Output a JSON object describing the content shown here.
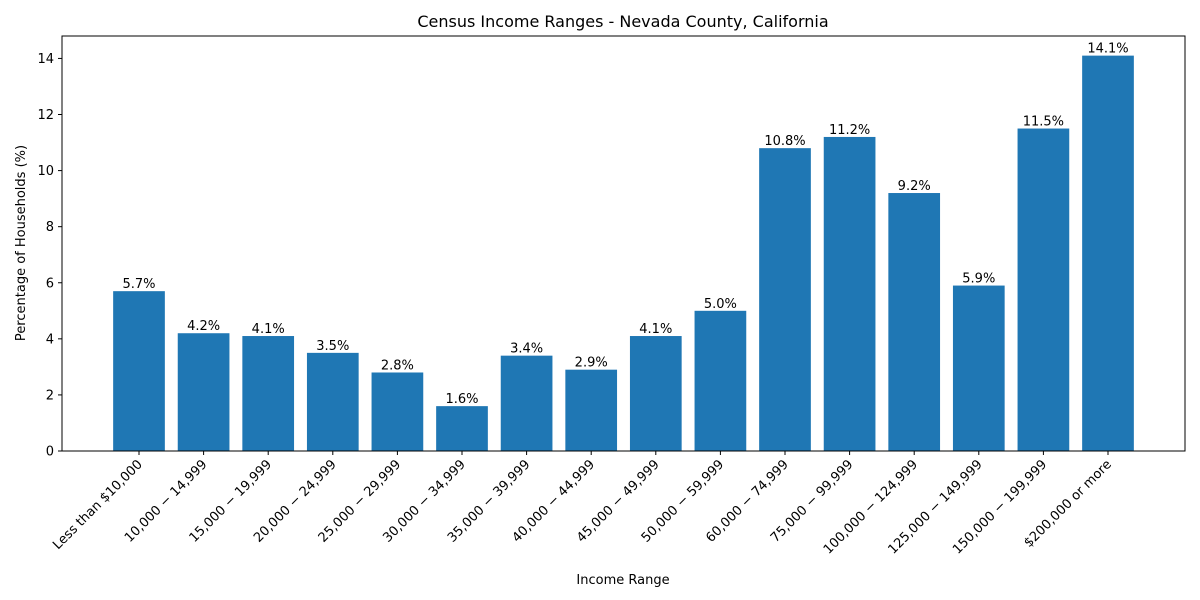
{
  "chart_data": {
    "type": "bar",
    "title": "Census Income Ranges - Nevada County, California",
    "xlabel": "Income Range",
    "ylabel": "Percentage of Households (%)",
    "categories": [
      "Less than $10,000",
      "10,000 − 14,999",
      "15,000 − 19,999",
      "20,000 − 24,999",
      "25,000 − 29,999",
      "30,000 − 34,999",
      "35,000 − 39,999",
      "40,000 − 44,999",
      "45,000 − 49,999",
      "50,000 − 59,999",
      "60,000 − 74,999",
      "75,000 − 99,999",
      "100,000 − 124,999",
      "125,000 − 149,999",
      "150,000 − 199,999",
      "$200,000 or more"
    ],
    "values": [
      5.7,
      4.2,
      4.1,
      3.5,
      2.8,
      1.6,
      3.4,
      2.9,
      4.1,
      5.0,
      10.8,
      11.2,
      9.2,
      5.9,
      11.5,
      14.1
    ],
    "value_labels": [
      "5.7%",
      "4.2%",
      "4.1%",
      "3.5%",
      "2.8%",
      "1.6%",
      "3.4%",
      "2.9%",
      "4.1%",
      "5.0%",
      "10.8%",
      "11.2%",
      "9.2%",
      "5.9%",
      "11.5%",
      "14.1%"
    ],
    "yticks": [
      0,
      2,
      4,
      6,
      8,
      10,
      12,
      14
    ],
    "ylim": [
      0,
      14.8
    ],
    "grid": false,
    "bar_color": "#1f77b4"
  }
}
